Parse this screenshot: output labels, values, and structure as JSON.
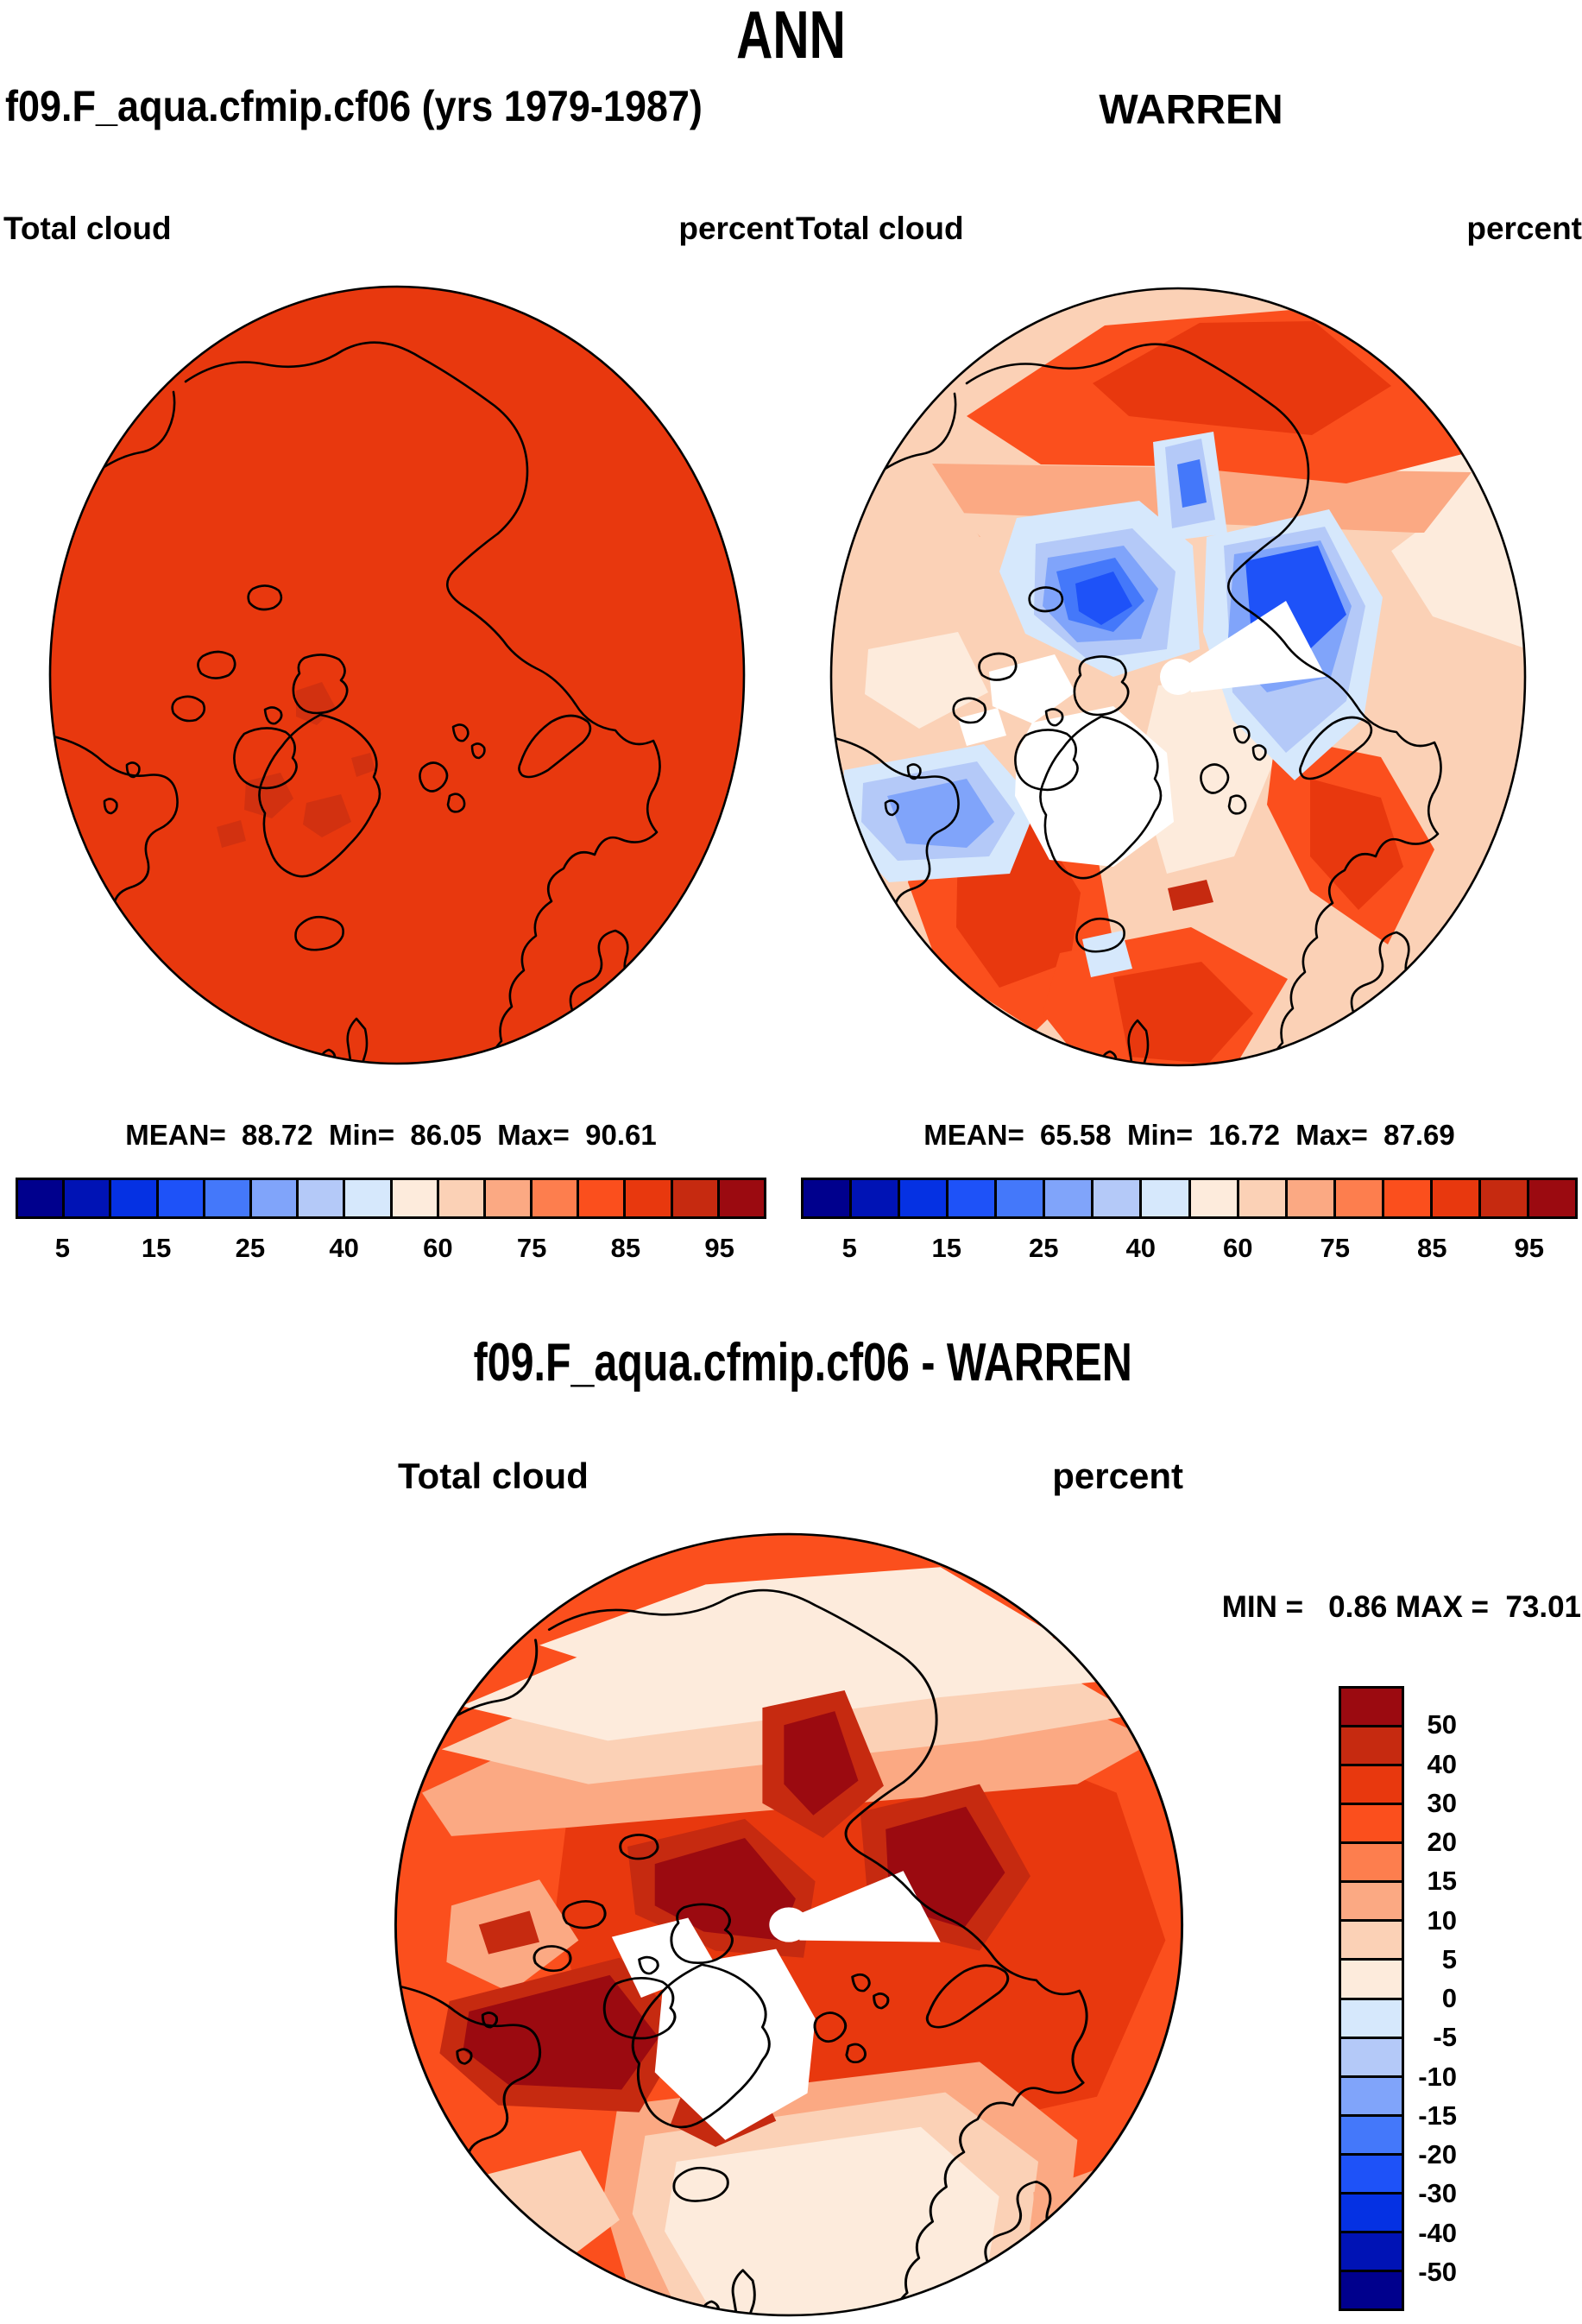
{
  "page": {
    "title": "ANN"
  },
  "model_panel": {
    "title": "f09.F_aqua.cfmip.cf06 (yrs 1979-1987)",
    "field_label": "Total cloud",
    "units_label": "percent",
    "stats_line": "MEAN=  88.72  Min=  86.05  Max=  90.61"
  },
  "obs_panel": {
    "title": "WARREN",
    "field_label": "Total cloud",
    "units_label": "percent",
    "stats_line": "MEAN=  65.58  Min=  16.72  Max=  87.69"
  },
  "diff_panel": {
    "title": "f09.F_aqua.cfmip.cf06 - WARREN",
    "field_label": "Total cloud",
    "units_label": "percent",
    "minmax_line": "MIN =   0.86 MAX =  73.01"
  },
  "colorbar": {
    "tick_start": 1,
    "tick_step": 2,
    "colors": [
      "#00008D",
      "#0013B5",
      "#0531E3",
      "#1E52F8",
      "#4478FA",
      "#80A4FA",
      "#B4C9F8",
      "#D6E8FC",
      "#FDEBDC",
      "#FBD1B6",
      "#FBA983",
      "#FD7E4E",
      "#FB4F1D",
      "#E8380E",
      "#C62A10",
      "#9B0A10"
    ],
    "tick_labels": [
      "5",
      "15",
      "25",
      "40",
      "60",
      "75",
      "85",
      "95"
    ]
  },
  "diff_colorbar": {
    "tick_start": 1,
    "tick_step": 1,
    "colors": [
      "#9B0A10",
      "#C62A10",
      "#E8380E",
      "#FB4F1D",
      "#FD7E4E",
      "#FBA983",
      "#FBD1B6",
      "#FDEBDC",
      "#D6E8FC",
      "#B4C9F8",
      "#80A4FA",
      "#4478FA",
      "#1E52F8",
      "#0531E3",
      "#0013B5",
      "#00008D"
    ],
    "tick_labels": [
      "50",
      "40",
      "30",
      "20",
      "15",
      "10",
      "5",
      "0",
      "-5",
      "-10",
      "-15",
      "-20",
      "-30",
      "-40",
      "-50"
    ]
  },
  "chart_data": [
    {
      "type": "heatmap",
      "title": "f09.F_aqua.cfmip.cf06 (yrs 1979-1987)",
      "variable": "Total cloud",
      "units": "percent",
      "projection": "north-polar-stereographic",
      "stats": {
        "mean": 88.72,
        "min": 86.05,
        "max": 90.61
      },
      "contour_levels": [
        5,
        10,
        15,
        20,
        25,
        30,
        40,
        50,
        60,
        70,
        75,
        80,
        85,
        90,
        95
      ],
      "palette": [
        "#00008D",
        "#0013B5",
        "#0531E3",
        "#1E52F8",
        "#4478FA",
        "#80A4FA",
        "#B4C9F8",
        "#D6E8FC",
        "#FDEBDC",
        "#FBD1B6",
        "#FBA983",
        "#FD7E4E",
        "#FB4F1D",
        "#E8380E",
        "#C62A10",
        "#9B0A10"
      ],
      "legend_position": "below",
      "notes": "Field is nearly uniform in the 85-90% bin with small darker (90-95%) patches"
    },
    {
      "type": "heatmap",
      "title": "WARREN",
      "variable": "Total cloud",
      "units": "percent",
      "projection": "north-polar-stereographic",
      "stats": {
        "mean": 65.58,
        "min": 16.72,
        "max": 87.69
      },
      "contour_levels": [
        5,
        10,
        15,
        20,
        25,
        30,
        40,
        50,
        60,
        70,
        75,
        80,
        85,
        90,
        95
      ],
      "palette": [
        "#00008D",
        "#0013B5",
        "#0531E3",
        "#1E52F8",
        "#4478FA",
        "#80A4FA",
        "#B4C9F8",
        "#D6E8FC",
        "#FDEBDC",
        "#FBD1B6",
        "#FBA983",
        "#FD7E4E",
        "#FB4F1D",
        "#E8380E",
        "#C62A10",
        "#9B0A10"
      ],
      "legend_position": "below",
      "notes": "Mostly 60-75% (peach) with 75-85% band over Siberia and N Atlantic, 25-50% (blue) pockets near Canadian Archipelago and Severnaya Zemlya, white missing-data wedge at pole and over Greenland"
    },
    {
      "type": "heatmap",
      "title": "f09.F_aqua.cfmip.cf06 - WARREN",
      "variable": "Total cloud",
      "units": "percent",
      "projection": "north-polar-stereographic",
      "stats": {
        "min": 0.86,
        "max": 73.01
      },
      "contour_levels": [
        -50,
        -40,
        -30,
        -20,
        -15,
        -10,
        -5,
        0,
        5,
        10,
        15,
        20,
        30,
        40,
        50
      ],
      "palette": [
        "#00008D",
        "#0013B5",
        "#0531E3",
        "#1E52F8",
        "#4478FA",
        "#80A4FA",
        "#B4C9F8",
        "#D6E8FC",
        "#FDEBDC",
        "#FBD1B6",
        "#FBA983",
        "#FD7E4E",
        "#FB4F1D",
        "#E8380E",
        "#C62A10",
        "#9B0A10"
      ],
      "legend_position": "right-vertical",
      "notes": "Everywhere positive: 20-30% over most of Arctic, >50% (dark red) near Canadian Archipelago, Baffin, Svalbard; 0-5% (cream) at southern edges; white missing-data wedges at pole, Greenland and archipelago"
    }
  ]
}
